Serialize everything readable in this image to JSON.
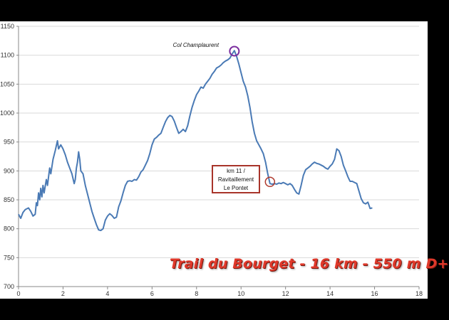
{
  "chart_data": {
    "type": "line",
    "title": "",
    "xlabel": "",
    "ylabel": "",
    "xlim": [
      0,
      18
    ],
    "ylim": [
      700,
      1150
    ],
    "x_ticks": [
      "0",
      "2",
      "4",
      "6",
      "8",
      "10",
      "12",
      "14",
      "16",
      "18"
    ],
    "y_ticks": [
      "700",
      "750",
      "800",
      "850",
      "900",
      "950",
      "1000",
      "1050",
      "1100",
      "1150"
    ],
    "grid": "horizontal",
    "legend": "none",
    "series": [
      {
        "color": "#4a7ab5",
        "points": [
          [
            0.0,
            825
          ],
          [
            0.1,
            818
          ],
          [
            0.2,
            828
          ],
          [
            0.3,
            833
          ],
          [
            0.45,
            836
          ],
          [
            0.55,
            830
          ],
          [
            0.65,
            822
          ],
          [
            0.75,
            825
          ],
          [
            0.8,
            845
          ],
          [
            0.85,
            840
          ],
          [
            0.9,
            862
          ],
          [
            0.95,
            850
          ],
          [
            1.0,
            870
          ],
          [
            1.05,
            855
          ],
          [
            1.1,
            875
          ],
          [
            1.15,
            862
          ],
          [
            1.25,
            885
          ],
          [
            1.3,
            875
          ],
          [
            1.4,
            905
          ],
          [
            1.45,
            895
          ],
          [
            1.55,
            920
          ],
          [
            1.65,
            935
          ],
          [
            1.75,
            952
          ],
          [
            1.8,
            938
          ],
          [
            1.9,
            945
          ],
          [
            2.0,
            938
          ],
          [
            2.1,
            928
          ],
          [
            2.2,
            915
          ],
          [
            2.3,
            905
          ],
          [
            2.4,
            895
          ],
          [
            2.5,
            878
          ],
          [
            2.55,
            885
          ],
          [
            2.6,
            905
          ],
          [
            2.65,
            915
          ],
          [
            2.7,
            933
          ],
          [
            2.75,
            920
          ],
          [
            2.8,
            900
          ],
          [
            2.9,
            895
          ],
          [
            3.0,
            875
          ],
          [
            3.1,
            860
          ],
          [
            3.2,
            845
          ],
          [
            3.3,
            830
          ],
          [
            3.4,
            818
          ],
          [
            3.5,
            807
          ],
          [
            3.6,
            798
          ],
          [
            3.7,
            797
          ],
          [
            3.8,
            800
          ],
          [
            3.9,
            815
          ],
          [
            4.0,
            822
          ],
          [
            4.1,
            826
          ],
          [
            4.2,
            823
          ],
          [
            4.3,
            818
          ],
          [
            4.4,
            820
          ],
          [
            4.5,
            838
          ],
          [
            4.6,
            848
          ],
          [
            4.7,
            862
          ],
          [
            4.8,
            875
          ],
          [
            4.9,
            882
          ],
          [
            5.0,
            883
          ],
          [
            5.1,
            882
          ],
          [
            5.2,
            885
          ],
          [
            5.3,
            884
          ],
          [
            5.4,
            890
          ],
          [
            5.5,
            898
          ],
          [
            5.6,
            902
          ],
          [
            5.7,
            910
          ],
          [
            5.8,
            918
          ],
          [
            5.9,
            930
          ],
          [
            6.0,
            945
          ],
          [
            6.1,
            955
          ],
          [
            6.2,
            958
          ],
          [
            6.3,
            962
          ],
          [
            6.4,
            965
          ],
          [
            6.5,
            975
          ],
          [
            6.6,
            985
          ],
          [
            6.7,
            992
          ],
          [
            6.8,
            996
          ],
          [
            6.9,
            994
          ],
          [
            7.0,
            986
          ],
          [
            7.1,
            975
          ],
          [
            7.2,
            965
          ],
          [
            7.3,
            968
          ],
          [
            7.4,
            972
          ],
          [
            7.5,
            968
          ],
          [
            7.6,
            978
          ],
          [
            7.7,
            995
          ],
          [
            7.8,
            1010
          ],
          [
            7.9,
            1022
          ],
          [
            8.0,
            1032
          ],
          [
            8.1,
            1038
          ],
          [
            8.2,
            1045
          ],
          [
            8.3,
            1043
          ],
          [
            8.4,
            1050
          ],
          [
            8.5,
            1055
          ],
          [
            8.6,
            1060
          ],
          [
            8.7,
            1067
          ],
          [
            8.8,
            1072
          ],
          [
            8.9,
            1078
          ],
          [
            9.0,
            1080
          ],
          [
            9.1,
            1083
          ],
          [
            9.2,
            1087
          ],
          [
            9.3,
            1090
          ],
          [
            9.4,
            1092
          ],
          [
            9.5,
            1095
          ],
          [
            9.6,
            1102
          ],
          [
            9.7,
            1108
          ],
          [
            9.8,
            1098
          ],
          [
            9.9,
            1085
          ],
          [
            10.0,
            1070
          ],
          [
            10.1,
            1055
          ],
          [
            10.2,
            1045
          ],
          [
            10.3,
            1030
          ],
          [
            10.4,
            1010
          ],
          [
            10.5,
            985
          ],
          [
            10.6,
            965
          ],
          [
            10.7,
            952
          ],
          [
            10.8,
            945
          ],
          [
            10.9,
            938
          ],
          [
            11.0,
            930
          ],
          [
            11.1,
            915
          ],
          [
            11.2,
            895
          ],
          [
            11.3,
            878
          ],
          [
            11.4,
            877
          ],
          [
            11.5,
            878
          ],
          [
            11.6,
            877
          ],
          [
            11.7,
            879
          ],
          [
            11.8,
            878
          ],
          [
            11.9,
            880
          ],
          [
            12.0,
            878
          ],
          [
            12.1,
            876
          ],
          [
            12.2,
            878
          ],
          [
            12.3,
            875
          ],
          [
            12.4,
            868
          ],
          [
            12.5,
            862
          ],
          [
            12.6,
            860
          ],
          [
            12.7,
            875
          ],
          [
            12.8,
            892
          ],
          [
            12.9,
            902
          ],
          [
            13.0,
            905
          ],
          [
            13.1,
            908
          ],
          [
            13.2,
            912
          ],
          [
            13.3,
            915
          ],
          [
            13.4,
            913
          ],
          [
            13.5,
            912
          ],
          [
            13.6,
            910
          ],
          [
            13.7,
            908
          ],
          [
            13.8,
            905
          ],
          [
            13.9,
            903
          ],
          [
            14.0,
            908
          ],
          [
            14.1,
            912
          ],
          [
            14.2,
            920
          ],
          [
            14.3,
            938
          ],
          [
            14.4,
            935
          ],
          [
            14.5,
            925
          ],
          [
            14.6,
            910
          ],
          [
            14.7,
            900
          ],
          [
            14.8,
            890
          ],
          [
            14.9,
            882
          ],
          [
            15.0,
            882
          ],
          [
            15.1,
            880
          ],
          [
            15.2,
            878
          ],
          [
            15.3,
            865
          ],
          [
            15.4,
            852
          ],
          [
            15.5,
            845
          ],
          [
            15.6,
            843
          ],
          [
            15.7,
            846
          ],
          [
            15.8,
            835
          ],
          [
            15.9,
            836
          ]
        ]
      }
    ],
    "annotations": {
      "peak_label": "Col Champlaurent",
      "peak_point": [
        9.7,
        1107
      ],
      "aid_station_lines": [
        "km 11 /",
        "Ravitaillement",
        "Le Pontet"
      ],
      "aid_station_point": [
        11.3,
        881
      ],
      "peak_marker_color": "#7b2d9e",
      "aid_marker_color": "#b03a2e"
    },
    "overlay_title": "Trail du Bourget - 16 km - 550 m D+",
    "overlay_title_color": "#e0392b"
  }
}
